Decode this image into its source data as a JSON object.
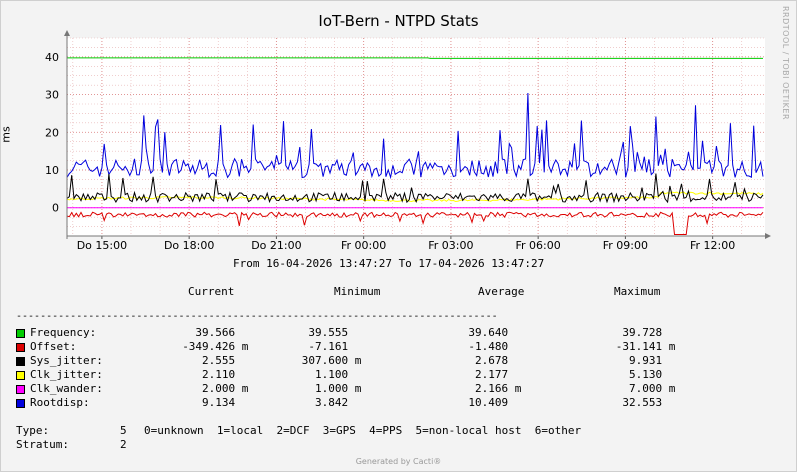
{
  "chart_data": {
    "type": "line",
    "title": "IoT-Bern - NTPD Stats",
    "ylabel": "ms",
    "ylim": [
      -7.5,
      45
    ],
    "yticks": [
      0,
      10,
      20,
      30,
      40
    ],
    "xticks": [
      "Do 15:00",
      "Do 18:00",
      "Do 21:00",
      "Fr 00:00",
      "Fr 03:00",
      "Fr 06:00",
      "Fr 09:00",
      "Fr 12:00"
    ],
    "grid": true,
    "range_text": "From 16-04-2026 13:47:27 To 17-04-2026 13:47:27",
    "watermark": "RRDTOOL / TOBI OETIKER",
    "series": [
      {
        "name": "Frequency",
        "color": "#00cc00",
        "current": "39.566",
        "minimum": "39.555",
        "average": "39.640",
        "maximum": "39.728",
        "trend": "frequency"
      },
      {
        "name": "Offset",
        "color": "#dd0000",
        "current": "-349.426 m",
        "minimum": "-7.161",
        "average": "-1.480",
        "maximum": "-31.141 m",
        "trend": "offset"
      },
      {
        "name": "Sys_jitter",
        "color": "#000000",
        "current": "2.555",
        "minimum": "307.600 m",
        "average": "2.678",
        "maximum": "9.931",
        "trend": "sysjitter"
      },
      {
        "name": "Clk_jitter",
        "color": "#ffff00",
        "current": "2.110",
        "minimum": "1.100",
        "average": "2.177",
        "maximum": "5.130",
        "trend": "clkjitter"
      },
      {
        "name": "Clk_wander",
        "color": "#ff00ff",
        "current": "2.000 m",
        "minimum": "1.000 m",
        "average": "2.166 m",
        "maximum": "7.000 m",
        "trend": "wander"
      },
      {
        "name": "Rootdisp",
        "color": "#0000dd",
        "current": "9.134",
        "minimum": "3.842",
        "average": "10.409",
        "maximum": "32.553",
        "trend": "rootdisp"
      }
    ]
  },
  "legend": {
    "header_current": "Current",
    "header_minimum": "Minimum",
    "header_average": "Average",
    "header_maximum": "Maximum",
    "separator": "--------------------------------------------------------------------------------"
  },
  "info": {
    "type_label": "Type:",
    "type_value": "5",
    "type_desc": "0=unknown  1=local  2=DCF  3=GPS  4=PPS  5=non-local host  6=other",
    "stratum_label": "Stratum:",
    "stratum_value": "2"
  },
  "footer": "Generated by Cacti®"
}
